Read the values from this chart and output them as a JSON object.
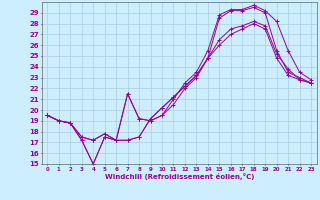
{
  "xlabel": "Windchill (Refroidissement éolien,°C)",
  "xlim": [
    -0.5,
    23.5
  ],
  "ylim": [
    15,
    30
  ],
  "yticks": [
    15,
    16,
    17,
    18,
    19,
    20,
    21,
    22,
    23,
    24,
    25,
    26,
    27,
    28,
    29
  ],
  "xticks": [
    0,
    1,
    2,
    3,
    4,
    5,
    6,
    7,
    8,
    9,
    10,
    11,
    12,
    13,
    14,
    15,
    16,
    17,
    18,
    19,
    20,
    21,
    22,
    23
  ],
  "bg_color": "#cceeff",
  "grid_color": "#aaccdd",
  "line_color": "#990099",
  "lines": [
    {
      "x": [
        0,
        1,
        2,
        3,
        4,
        5,
        6,
        7,
        8,
        9,
        10,
        11,
        12,
        13,
        14,
        15,
        16,
        17,
        18,
        19,
        20,
        21,
        22,
        23
      ],
      "y": [
        19.5,
        19.0,
        18.8,
        17.2,
        15.0,
        17.5,
        17.2,
        21.5,
        19.2,
        19.0,
        19.5,
        20.5,
        22.0,
        23.0,
        24.8,
        28.5,
        29.2,
        29.2,
        29.5,
        29.0,
        25.5,
        23.5,
        23.0,
        22.5
      ]
    },
    {
      "x": [
        0,
        1,
        2,
        3,
        4,
        5,
        6,
        7,
        8,
        9,
        10,
        11,
        12,
        13,
        14,
        15,
        16,
        17,
        18,
        19,
        20,
        21,
        22,
        23
      ],
      "y": [
        19.5,
        19.0,
        18.8,
        17.2,
        15.0,
        17.5,
        17.2,
        21.5,
        19.2,
        19.0,
        19.5,
        21.0,
        22.5,
        23.5,
        25.5,
        28.8,
        29.3,
        29.3,
        29.7,
        29.2,
        28.2,
        25.5,
        23.5,
        22.8
      ]
    },
    {
      "x": [
        0,
        1,
        2,
        3,
        4,
        5,
        6,
        7,
        8,
        9,
        10,
        11,
        12,
        13,
        14,
        15,
        16,
        17,
        18,
        19,
        20,
        21,
        22,
        23
      ],
      "y": [
        19.5,
        19.0,
        18.8,
        17.5,
        17.2,
        17.8,
        17.2,
        17.2,
        17.5,
        19.2,
        20.2,
        21.2,
        22.2,
        23.2,
        24.8,
        26.5,
        27.5,
        27.8,
        28.2,
        27.8,
        25.2,
        23.8,
        22.8,
        22.5
      ]
    },
    {
      "x": [
        0,
        1,
        2,
        3,
        4,
        5,
        6,
        7,
        8,
        9,
        10,
        11,
        12,
        13,
        14,
        15,
        16,
        17,
        18,
        19,
        20,
        21,
        22,
        23
      ],
      "y": [
        19.5,
        19.0,
        18.8,
        17.5,
        17.2,
        17.8,
        17.2,
        17.2,
        17.5,
        19.2,
        20.2,
        21.2,
        22.2,
        23.2,
        24.8,
        26.0,
        27.0,
        27.5,
        28.0,
        27.5,
        24.8,
        23.2,
        22.8,
        22.5
      ]
    }
  ]
}
